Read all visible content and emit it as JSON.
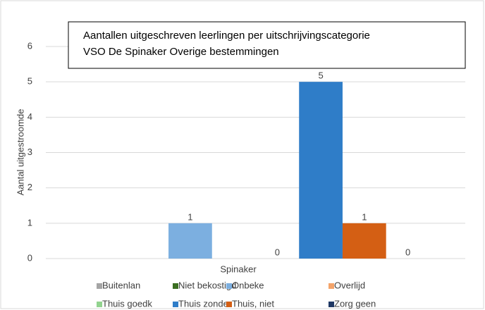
{
  "chart_data": {
    "type": "bar",
    "title": [
      "Aantallen uitgeschreven leerlingen per uitschrijvingscategorie",
      "VSO De Spinaker Overige bestemmingen"
    ],
    "y_label": "Aantal uitgestroomde",
    "x_label": "Spinaker",
    "categories": [
      "Spinaker"
    ],
    "ylim": [
      0,
      6
    ],
    "yticks": [
      0,
      1,
      2,
      3,
      4,
      5,
      6
    ],
    "grid": true,
    "legend": "bottom",
    "series": [
      {
        "name": "Buitenlan",
        "color": "#a5a5a5",
        "values": [
          null
        ]
      },
      {
        "name": "Niet bekostigd",
        "color": "#3b6e22",
        "values": [
          null
        ]
      },
      {
        "name": "Onbeke",
        "color": "#7cafe0",
        "values": [
          1
        ]
      },
      {
        "name": "Overlijd",
        "color": "#f4a46a",
        "values": [
          null
        ]
      },
      {
        "name": "Thuis goedk",
        "color": "#92d38f",
        "values": [
          0
        ]
      },
      {
        "name": "Thuis zonder",
        "color": "#2f7dc8",
        "values": [
          5
        ]
      },
      {
        "name": "Thuis, niet",
        "color": "#d45f14",
        "values": [
          1
        ]
      },
      {
        "name": "Zorg geen",
        "color": "#1f3864",
        "values": [
          0
        ]
      }
    ]
  }
}
